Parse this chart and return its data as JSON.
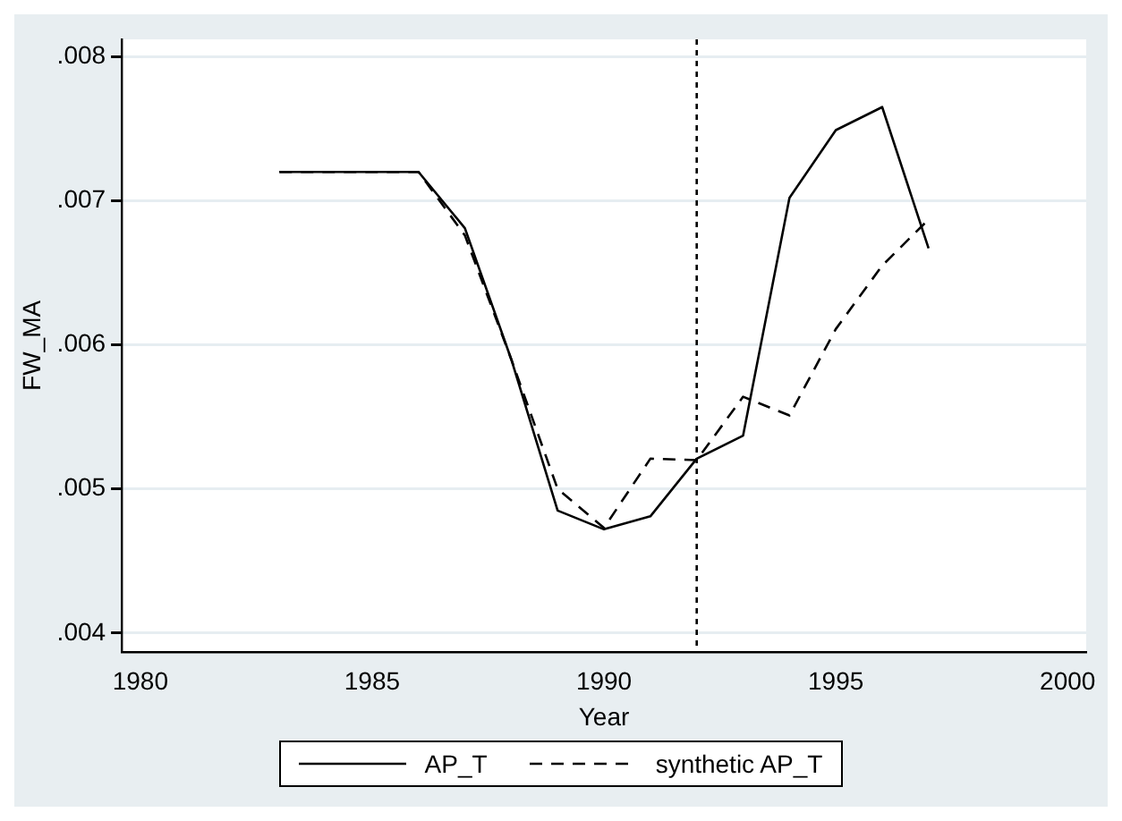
{
  "chart_data": {
    "type": "line",
    "xlabel": "Year",
    "ylabel": "FW_MA",
    "x": [
      1983,
      1984,
      1985,
      1986,
      1987,
      1988,
      1989,
      1990,
      1991,
      1992,
      1993,
      1994,
      1995,
      1996,
      1997
    ],
    "series": [
      {
        "name": "AP_T",
        "color": "#000000",
        "line_style": "solid",
        "values": [
          0.0072,
          0.0072,
          0.0072,
          0.0072,
          0.00681,
          0.0059,
          0.00485,
          0.00472,
          0.00481,
          0.00521,
          0.00537,
          0.00702,
          0.00749,
          0.00765,
          0.00667
        ]
      },
      {
        "name": "synthetic AP_T",
        "color": "#000000",
        "line_style": "dashed",
        "values": [
          0.0072,
          0.0072,
          0.0072,
          0.0072,
          0.00676,
          0.0059,
          0.005,
          0.00473,
          0.00521,
          0.0052,
          0.00564,
          0.00551,
          0.00611,
          0.00655,
          0.00687
        ]
      }
    ],
    "xlim": [
      1979.6,
      2000.4
    ],
    "xticks": [
      1980,
      1985,
      1990,
      1995,
      2000
    ],
    "ylim": [
      0.00387,
      0.00812
    ],
    "yticks": [
      {
        "value": 0.004,
        "label": ".004"
      },
      {
        "value": 0.005,
        "label": ".005"
      },
      {
        "value": 0.006,
        "label": ".006"
      },
      {
        "value": 0.007,
        "label": ".007"
      },
      {
        "value": 0.008,
        "label": ".008"
      }
    ],
    "ref_lines": [
      {
        "axis": "x",
        "value": 1992,
        "color": "#000000",
        "line_style": "dotted"
      }
    ],
    "grid": "y",
    "legend": "bottom",
    "marker": "none"
  }
}
